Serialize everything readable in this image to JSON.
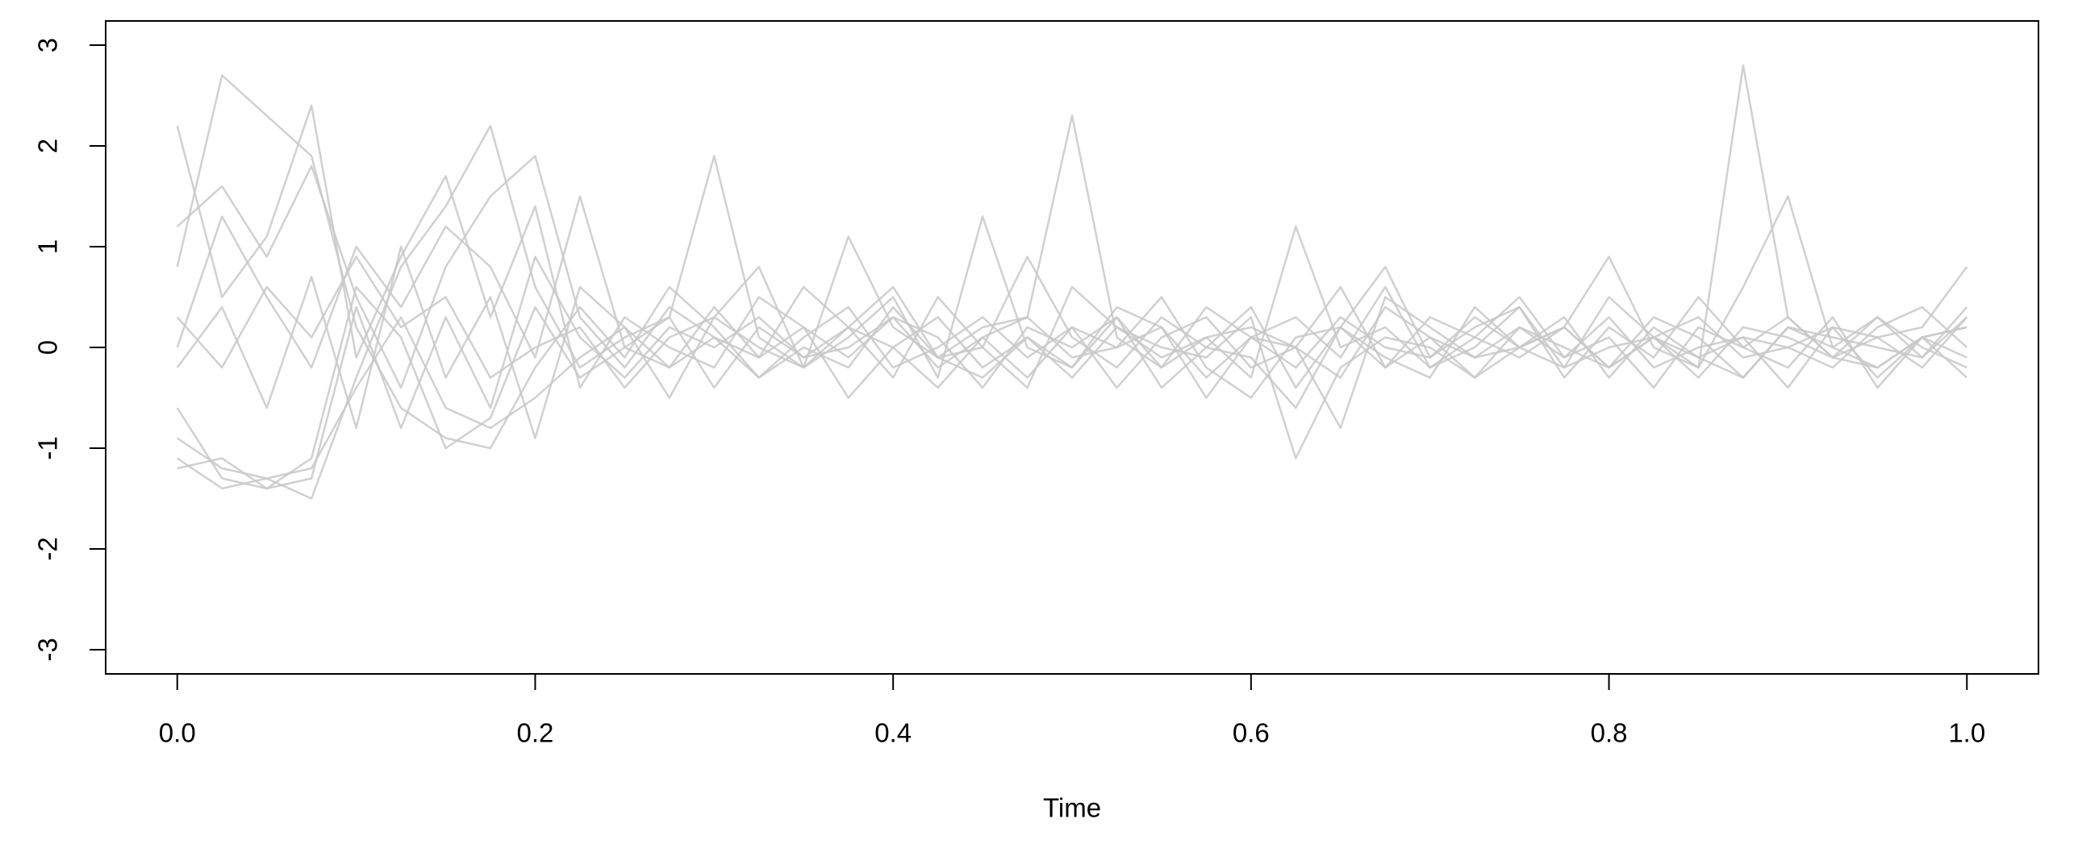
{
  "chart_data": {
    "type": "line",
    "x_label": "Time",
    "x": [
      0,
      0.025,
      0.05,
      0.075,
      0.1,
      0.125,
      0.15,
      0.175,
      0.2,
      0.225,
      0.25,
      0.275,
      0.3,
      0.325,
      0.35,
      0.375,
      0.4,
      0.425,
      0.45,
      0.475,
      0.5,
      0.525,
      0.55,
      0.575,
      0.6,
      0.625,
      0.65,
      0.675,
      0.7,
      0.725,
      0.75,
      0.775,
      0.8,
      0.825,
      0.85,
      0.875,
      0.9,
      0.925,
      0.95,
      0.975,
      1
    ],
    "series": [
      {
        "color": "#c8c8c8",
        "values": [
          -0.9,
          -1.2,
          -1.3,
          -1.2,
          -0.4,
          0.3,
          -0.6,
          -0.8,
          -0.5,
          -0.1,
          0.2,
          -0.2,
          0.1,
          -0.3,
          0.0,
          -0.2,
          0.4,
          -0.1,
          -0.3,
          0.1,
          -0.2,
          0.3,
          -0.4,
          0.0,
          -0.1,
          -0.6,
          0.2,
          -0.2,
          0.1,
          -0.3,
          0.0,
          0.2,
          -0.2,
          0.1,
          -0.1,
          -0.3,
          0.2,
          0.0,
          -0.2,
          0.1,
          -0.1
        ]
      },
      {
        "color": "#c8c8c8",
        "values": [
          1.2,
          1.6,
          0.9,
          1.8,
          0.5,
          -0.4,
          0.8,
          1.5,
          1.9,
          0.3,
          -0.2,
          0.4,
          0.1,
          -0.1,
          0.6,
          0.2,
          -0.3,
          0.5,
          0.0,
          0.9,
          0.1,
          -0.2,
          0.3,
          0.0,
          0.4,
          -0.4,
          0.2,
          0.8,
          -0.1,
          0.3,
          0.0,
          -0.2,
          0.5,
          0.1,
          -0.2,
          0.6,
          1.5,
          0.0,
          0.3,
          -0.1,
          0.4
        ]
      },
      {
        "color": "#c8c8c8",
        "values": [
          -1.1,
          -1.4,
          -1.3,
          -1.5,
          -0.3,
          0.8,
          1.4,
          2.2,
          0.6,
          -0.2,
          0.1,
          0.3,
          -0.4,
          0.2,
          -0.1,
          0.0,
          0.3,
          -0.2,
          0.1,
          -0.3,
          0.2,
          0.0,
          0.5,
          -0.2,
          -0.5,
          0.1,
          0.2,
          -0.1,
          -0.3,
          0.4,
          0.0,
          0.2,
          -0.2,
          0.1,
          0.3,
          -0.1,
          0.0,
          0.2,
          -0.3,
          0.1,
          0.2
        ]
      },
      {
        "color": "#c8c8c8",
        "values": [
          0.8,
          2.7,
          2.3,
          1.9,
          0.2,
          -0.6,
          -0.9,
          -1.0,
          -0.2,
          0.4,
          -0.1,
          0.6,
          0.2,
          -0.3,
          0.1,
          0.4,
          -0.2,
          0.0,
          0.3,
          -0.1,
          0.2,
          -0.4,
          0.1,
          0.3,
          -0.2,
          0.0,
          -0.8,
          0.5,
          0.2,
          -0.1,
          0.0,
          0.3,
          -0.3,
          0.2,
          -0.1,
          0.1,
          0.0,
          -0.2,
          0.2,
          0.4,
          0.0
        ]
      },
      {
        "color": "#c8c8c8",
        "values": [
          0.3,
          -0.2,
          0.6,
          0.1,
          0.9,
          0.2,
          0.5,
          -0.3,
          0.0,
          0.2,
          -0.4,
          0.1,
          0.3,
          0.0,
          -0.2,
          1.1,
          0.2,
          -0.1,
          0.0,
          -0.4,
          0.6,
          0.2,
          -0.1,
          0.1,
          -0.3,
          1.2,
          0.0,
          0.2,
          -0.2,
          0.1,
          0.5,
          -0.1,
          0.3,
          -0.2,
          0.0,
          0.1,
          -0.4,
          0.2,
          0.1,
          -0.2,
          0.3
        ]
      },
      {
        "color": "#c8c8c8",
        "values": [
          -0.2,
          0.4,
          -0.6,
          0.7,
          -0.8,
          1.0,
          -0.3,
          0.5,
          -0.9,
          0.6,
          0.2,
          -0.5,
          0.3,
          0.8,
          -0.2,
          0.1,
          0.5,
          -0.3,
          1.3,
          0.0,
          -0.2,
          0.4,
          0.2,
          -0.5,
          0.1,
          0.3,
          -0.1,
          0.6,
          -0.2,
          0.0,
          0.4,
          -0.3,
          0.2,
          -0.1,
          0.5,
          0.0,
          -0.2,
          0.3,
          -0.4,
          0.1,
          0.2
        ]
      },
      {
        "color": "#c8c8c8",
        "values": [
          -0.6,
          -1.3,
          -1.4,
          -1.1,
          0.6,
          0.1,
          -1.0,
          -0.7,
          0.4,
          -0.3,
          0.0,
          -0.2,
          0.4,
          -0.1,
          0.2,
          -0.5,
          0.0,
          0.3,
          -0.2,
          0.1,
          -0.3,
          0.2,
          0.0,
          -0.1,
          0.3,
          -1.1,
          -0.2,
          0.1,
          0.0,
          -0.3,
          0.2,
          -0.1,
          0.1,
          -0.4,
          0.2,
          0.0,
          0.3,
          -0.1,
          -0.2,
          0.1,
          -0.3
        ]
      },
      {
        "color": "#c8c8c8",
        "values": [
          2.2,
          0.5,
          1.1,
          2.4,
          -0.1,
          0.9,
          1.7,
          0.3,
          1.4,
          -0.4,
          0.3,
          0.0,
          -0.2,
          0.5,
          0.2,
          -0.1,
          0.3,
          0.1,
          -0.4,
          0.2,
          0.0,
          0.3,
          -0.2,
          0.1,
          0.2,
          0.0,
          -0.3,
          0.4,
          0.1,
          -0.1,
          0.2,
          0.0,
          -0.2,
          0.3,
          0.1,
          -0.3,
          0.2,
          0.1,
          0.0,
          -0.1,
          0.3
        ]
      },
      {
        "color": "#c8c8c8",
        "values": [
          -1.2,
          -1.1,
          -1.4,
          -1.3,
          0.4,
          -0.8,
          0.3,
          -0.6,
          0.9,
          0.1,
          -0.3,
          0.2,
          0.0,
          0.3,
          -0.1,
          0.2,
          0.0,
          -0.4,
          0.1,
          0.3,
          -0.1,
          0.0,
          0.2,
          -0.3,
          0.1,
          -0.2,
          0.3,
          0.0,
          -0.1,
          0.2,
          0.4,
          -0.2,
          0.0,
          0.1,
          -0.3,
          0.2,
          0.1,
          -0.1,
          0.3,
          0.0,
          -0.2
        ]
      },
      {
        "color": "#c8c8c8",
        "values": [
          0.0,
          1.3,
          0.5,
          -0.2,
          1.0,
          0.4,
          1.2,
          0.8,
          -0.1,
          1.5,
          0.0,
          0.3,
          1.9,
          0.1,
          -0.2,
          0.2,
          0.6,
          -0.1,
          0.2,
          0.3,
          2.3,
          0.1,
          -0.2,
          0.4,
          0.1,
          0.0,
          0.6,
          -0.2,
          0.3,
          0.1,
          -0.1,
          0.2,
          0.9,
          0.0,
          -0.2,
          2.8,
          0.3,
          -0.1,
          0.1,
          0.2,
          0.8
        ]
      }
    ],
    "xlim": [
      -0.04,
      1.04
    ],
    "ylim": [
      -3.24,
      3.24
    ],
    "xticks": [
      {
        "value": 0,
        "label": "0.0"
      },
      0.2,
      0.4,
      0.6,
      0.8,
      {
        "value": 1,
        "label": "1.0"
      }
    ],
    "yticks": [
      -3,
      -2,
      -1,
      0,
      1,
      2,
      3
    ],
    "grid": false
  }
}
